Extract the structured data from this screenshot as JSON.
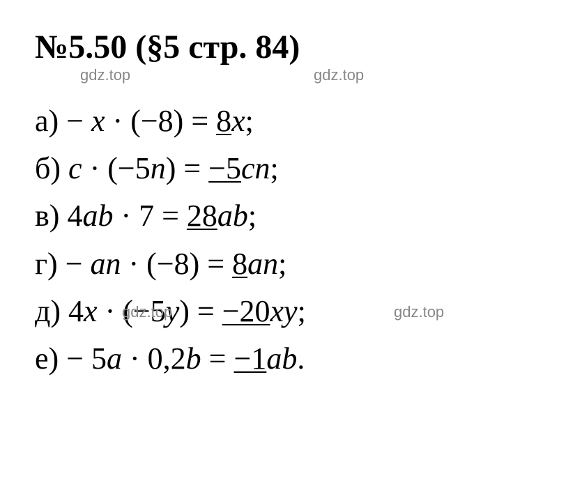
{
  "title": "№5.50 (§5 стр. 84)",
  "watermark": "gdz.top",
  "colors": {
    "background": "#ffffff",
    "text": "#000000",
    "watermark": "#888888"
  },
  "typography": {
    "title_fontsize": 48,
    "title_weight": "bold",
    "body_fontsize": 44,
    "font_family": "Times New Roman",
    "watermark_fontsize": 22
  },
  "problems": {
    "a": {
      "label": "а) ",
      "lhs_pre": "− ",
      "lhs_var1": "x ",
      "lhs_op": "· (−8) = ",
      "answer_num": "8",
      "answer_var": "x",
      "end": ";"
    },
    "b": {
      "label": "б) ",
      "lhs_var1": "c ",
      "lhs_op1": "· (−5",
      "lhs_var2": "n",
      "lhs_op2": ") = ",
      "answer_num": "−5",
      "answer_var": "cn",
      "end": ";"
    },
    "c": {
      "label": "в) ",
      "lhs_num1": "4",
      "lhs_var1": "ab ",
      "lhs_op": "· 7 = ",
      "answer_num": "28",
      "answer_var": "ab",
      "end": ";"
    },
    "d": {
      "label": "г) ",
      "lhs_pre": "− ",
      "lhs_var1": "an ",
      "lhs_op": "· (−8) = ",
      "answer_num": "8",
      "answer_var": "an",
      "end": ";"
    },
    "e": {
      "label": "д) ",
      "lhs_num1": "4",
      "lhs_var1": "x ",
      "lhs_op1": "· (−5",
      "lhs_var2": "y",
      "lhs_op2": ") = ",
      "answer_num": "−20",
      "answer_var": "xy",
      "end": ";"
    },
    "f": {
      "label": "е) ",
      "lhs_pre": "− 5",
      "lhs_var1": "a ",
      "lhs_op": "· 0,2",
      "lhs_var2": "b ",
      "lhs_eq": "= ",
      "answer_num": "−1",
      "answer_var": "ab",
      "end": "."
    }
  }
}
